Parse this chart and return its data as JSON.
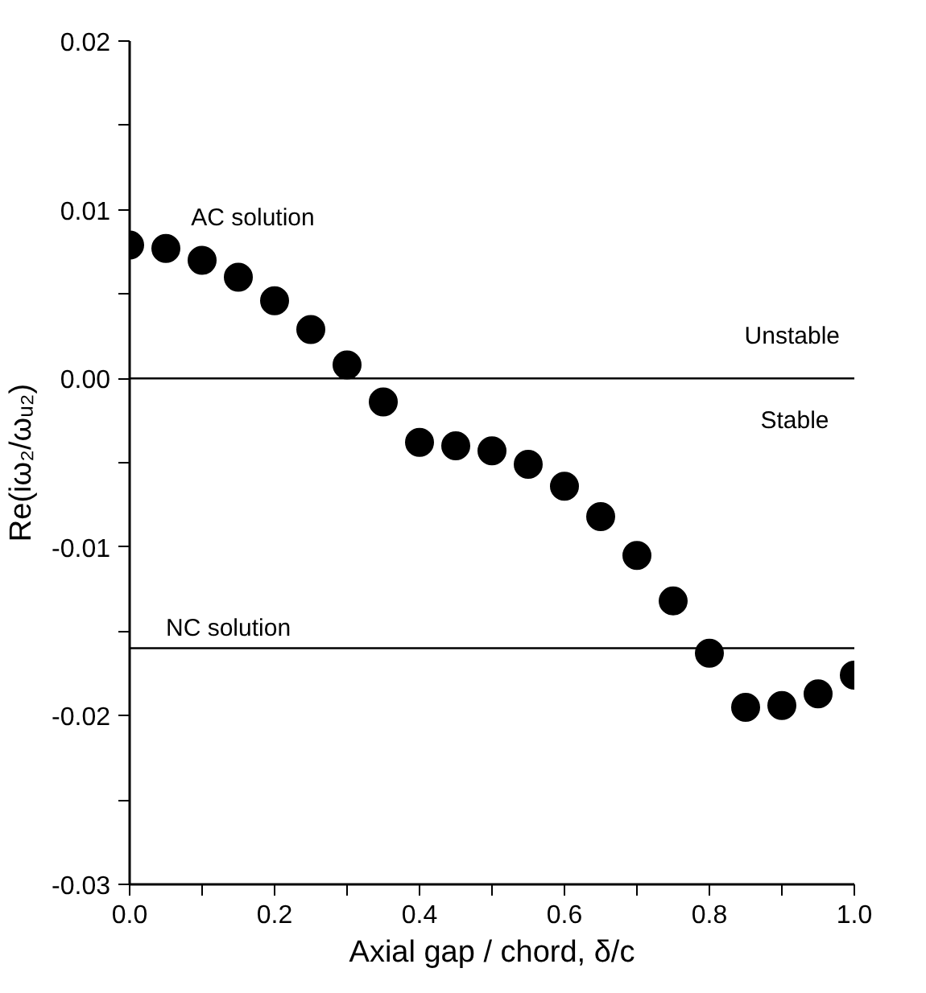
{
  "chart_data": {
    "type": "scatter",
    "xlabel": "Axial gap / chord, δ/c",
    "ylabel": "Re(iω₂/ωᵤ₂)",
    "x": [
      0.0,
      0.05,
      0.1,
      0.15,
      0.2,
      0.25,
      0.3,
      0.35,
      0.4,
      0.45,
      0.5,
      0.55,
      0.6,
      0.65,
      0.7,
      0.75,
      0.8,
      0.85,
      0.9,
      0.95,
      1.0
    ],
    "series": [
      {
        "color": "#000000",
        "values": [
          0.0079,
          0.0077,
          0.007,
          0.006,
          0.0046,
          0.0029,
          0.0008,
          -0.0014,
          -0.0038,
          -0.004,
          -0.0043,
          -0.0051,
          -0.0064,
          -0.0082,
          -0.0105,
          -0.0132,
          -0.0163,
          -0.0195,
          -0.0194,
          -0.0187,
          -0.0176
        ]
      }
    ],
    "marker": "circle",
    "xlim": [
      0.0,
      1.0
    ],
    "ylim": [
      -0.03,
      0.02
    ],
    "xticks": [
      {
        "value": 0.0,
        "label": "0.0"
      },
      {
        "value": 0.1,
        "label": null
      },
      {
        "value": 0.2,
        "label": "0.2"
      },
      {
        "value": 0.3,
        "label": null
      },
      {
        "value": 0.4,
        "label": "0.4"
      },
      {
        "value": 0.5,
        "label": null
      },
      {
        "value": 0.6,
        "label": "0.6"
      },
      {
        "value": 0.7,
        "label": null
      },
      {
        "value": 0.8,
        "label": "0.8"
      },
      {
        "value": 0.9,
        "label": null
      },
      {
        "value": 1.0,
        "label": "1.0"
      }
    ],
    "yticks": [
      {
        "value": -0.03,
        "label": "-0.03"
      },
      {
        "value": -0.025,
        "label": null
      },
      {
        "value": -0.02,
        "label": "-0.02"
      },
      {
        "value": -0.015,
        "label": null
      },
      {
        "value": -0.01,
        "label": "-0.01"
      },
      {
        "value": -0.005,
        "label": null
      },
      {
        "value": 0.0,
        "label": "0.00"
      },
      {
        "value": 0.005,
        "label": null
      },
      {
        "value": 0.01,
        "label": "0.01"
      },
      {
        "value": 0.015,
        "label": null
      },
      {
        "value": 0.02,
        "label": "0.02"
      }
    ],
    "ref_lines": [
      {
        "axis": "y",
        "value": 0.0,
        "color": "#000000"
      },
      {
        "axis": "y",
        "value": -0.016,
        "label": "NC solution",
        "color": "#000000"
      }
    ],
    "annotations": [
      "AC solution",
      "Unstable",
      "Stable"
    ],
    "grid": false
  }
}
